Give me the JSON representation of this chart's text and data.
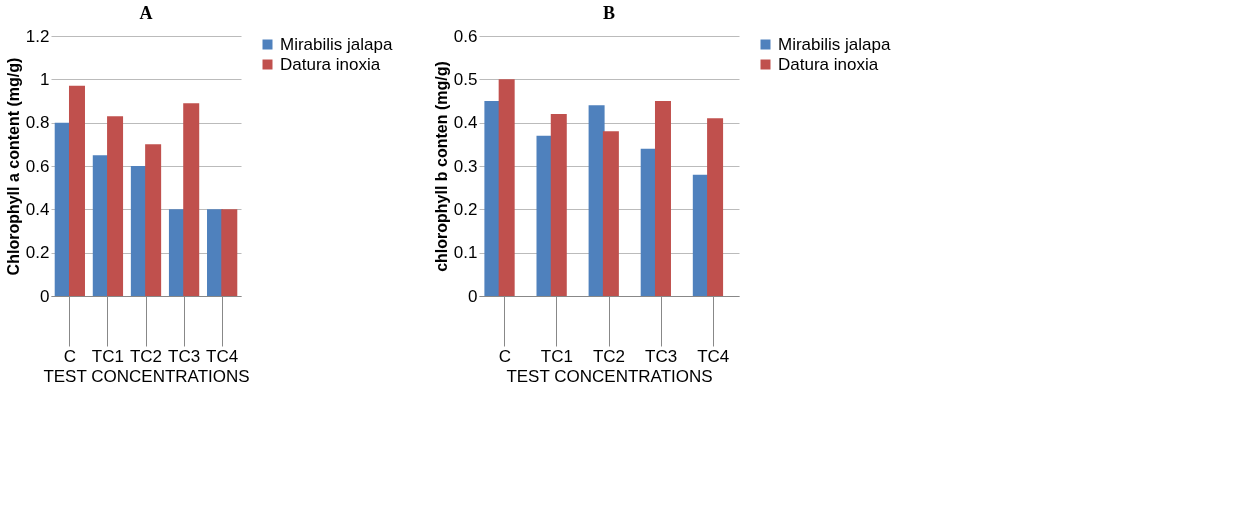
{
  "chart_data": [
    {
      "type": "bar",
      "title": "A",
      "ylabel": "Chlorophyll a content (mg/g)",
      "xlabel": "TEST CONCENTRATIONS",
      "categories": [
        "C",
        "TC1",
        "TC2",
        "TC3",
        "TC4"
      ],
      "ylim": [
        0,
        1.2
      ],
      "yticks": [
        0,
        0.2,
        0.4,
        0.6,
        0.8,
        1,
        1.2
      ],
      "grid": "y",
      "legend": "right",
      "series": [
        {
          "name": "Mirabilis jalapa",
          "color": "#4f81bd",
          "values": [
            0.8,
            0.65,
            0.6,
            0.4,
            0.4
          ]
        },
        {
          "name": "Datura inoxia",
          "color": "#c0504d",
          "values": [
            0.97,
            0.83,
            0.7,
            0.89,
            0.4
          ]
        }
      ]
    },
    {
      "type": "bar",
      "title": "B",
      "ylabel": "chlorophyll b conten (mg/g)",
      "xlabel": "TEST CONCENTRATIONS",
      "categories": [
        "C",
        "TC1",
        "TC2",
        "TC3",
        "TC4"
      ],
      "ylim": [
        0,
        0.6
      ],
      "yticks": [
        0,
        0.1,
        0.2,
        0.3,
        0.4,
        0.5,
        0.6
      ],
      "grid": "y",
      "legend": "right",
      "series": [
        {
          "name": "Mirabilis jalapa",
          "color": "#4f81bd",
          "values": [
            0.45,
            0.37,
            0.44,
            0.34,
            0.28
          ]
        },
        {
          "name": "Datura inoxia",
          "color": "#c0504d",
          "values": [
            0.5,
            0.42,
            0.38,
            0.45,
            0.41
          ]
        }
      ]
    }
  ]
}
